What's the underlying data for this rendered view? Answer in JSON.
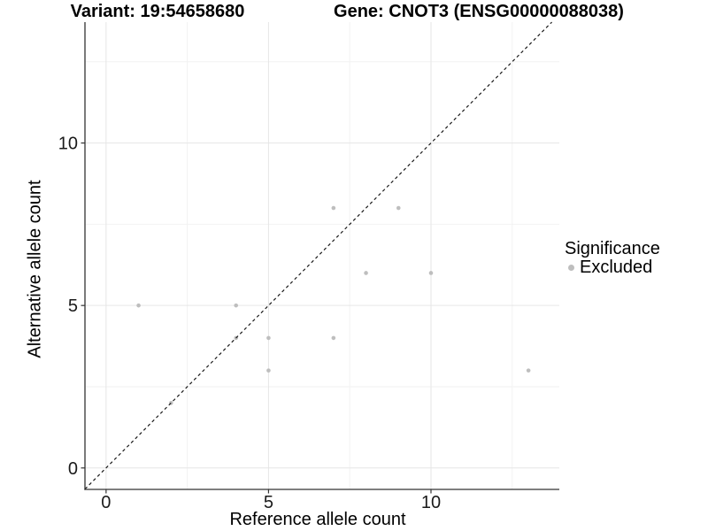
{
  "chart_data": {
    "type": "scatter",
    "title_left": "Variant: 19:54658680",
    "title_right": "Gene: CNOT3 (ENSG00000088038)",
    "xlabel": "Reference allele count",
    "ylabel": "Alternative allele count",
    "xlim": [
      -0.65,
      13.95
    ],
    "ylim": [
      -0.66,
      13.72
    ],
    "x_major_ticks": [
      0,
      5,
      10
    ],
    "y_major_ticks": [
      0,
      5,
      10
    ],
    "x_tick_labels": [
      "0",
      "5",
      "10"
    ],
    "y_tick_labels": [
      "0",
      "5",
      "10"
    ],
    "x_minor_gridlines": [
      2.5,
      7.5,
      12.5
    ],
    "y_minor_gridlines": [
      2.5,
      7.5,
      12.5
    ],
    "grid": true,
    "points": [
      {
        "x": 1,
        "y": 5
      },
      {
        "x": 2,
        "y": 2
      },
      {
        "x": 4,
        "y": 4
      },
      {
        "x": 4,
        "y": 5
      },
      {
        "x": 5,
        "y": 3
      },
      {
        "x": 5,
        "y": 4
      },
      {
        "x": 7,
        "y": 4
      },
      {
        "x": 7,
        "y": 8
      },
      {
        "x": 8,
        "y": 6
      },
      {
        "x": 9,
        "y": 8
      },
      {
        "x": 10,
        "y": 6
      },
      {
        "x": 13,
        "y": 3
      }
    ],
    "reference_line": {
      "slope": 1,
      "intercept": 0,
      "style": "dashed"
    },
    "legend": {
      "title": "Significance",
      "position": "right",
      "entries": [
        {
          "label": "Excluded",
          "color": "#bebebe"
        }
      ]
    },
    "colors": {
      "point": "#bebebe",
      "grid_major": "#e6e6e6",
      "grid_minor": "#f2f2f2",
      "axis": "#333333",
      "dashed_line": "#1a1a1a",
      "tick_text": "#1a1a1a",
      "title_text": "#000000"
    }
  }
}
